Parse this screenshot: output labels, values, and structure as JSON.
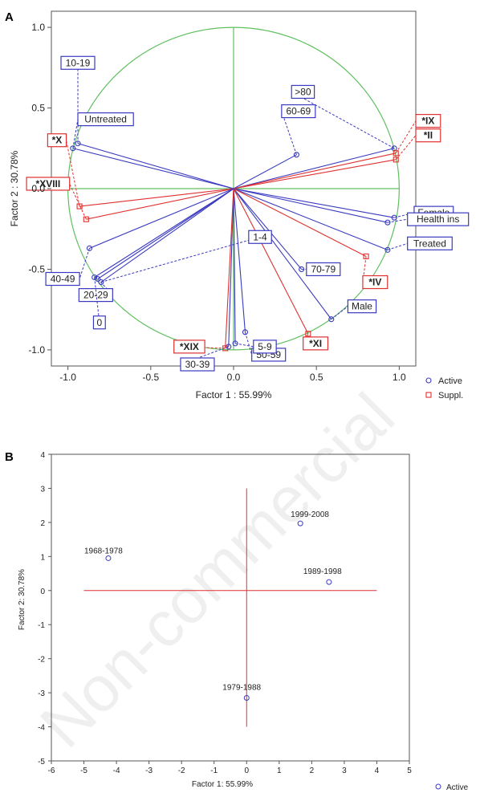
{
  "chart_data": [
    {
      "type": "scatter",
      "panel_label": "A",
      "xlabel": "Factor 1 : 55.99%",
      "ylabel": "Factor 2 : 30.78%",
      "xlim": [
        -1.1,
        1.1
      ],
      "ylim": [
        -1.1,
        1.1
      ],
      "xticks": [
        "-1.0",
        "-0.5",
        "0.0",
        "0.5",
        "1.0"
      ],
      "yticks": [
        "1.0",
        "0.5",
        "0.0",
        "-0.5",
        "-1.0"
      ],
      "unit_circle": true,
      "legend": [
        {
          "name": "Active",
          "marker": "circle",
          "color": "#3a3ac0"
        },
        {
          "name": "Suppl.",
          "marker": "square",
          "color": "#e03030"
        }
      ],
      "colors": {
        "active": "#3a3ac0",
        "suppl": "#e03030",
        "circle": "#60c060",
        "axes": "#60c060"
      },
      "points": [
        {
          "label": "10-19",
          "x": -0.94,
          "y": 0.28,
          "group": "active"
        },
        {
          "label": "Untreated",
          "x": -0.97,
          "y": 0.25,
          "group": "active"
        },
        {
          "label": "60-69",
          "x": 0.38,
          "y": 0.21,
          "group": "active"
        },
        {
          "label": ">80",
          "x": 0.97,
          "y": 0.25,
          "group": "active"
        },
        {
          "label": "*IX",
          "x": 0.98,
          "y": 0.22,
          "group": "suppl"
        },
        {
          "label": "*II",
          "x": 0.98,
          "y": 0.18,
          "group": "suppl"
        },
        {
          "label": "Female",
          "x": 0.97,
          "y": -0.18,
          "group": "active"
        },
        {
          "label": "Health ins",
          "x": 0.93,
          "y": -0.21,
          "group": "active"
        },
        {
          "label": "Treated",
          "x": 0.93,
          "y": -0.38,
          "group": "active"
        },
        {
          "label": "*IV",
          "x": 0.8,
          "y": -0.42,
          "group": "suppl"
        },
        {
          "label": "70-79",
          "x": 0.41,
          "y": -0.5,
          "group": "active"
        },
        {
          "label": "Male",
          "x": 0.59,
          "y": -0.81,
          "group": "active"
        },
        {
          "label": "*XI",
          "x": 0.45,
          "y": -0.9,
          "group": "suppl"
        },
        {
          "label": "50-59",
          "x": 0.07,
          "y": -0.89,
          "group": "active"
        },
        {
          "label": "5-9",
          "x": 0.01,
          "y": -0.96,
          "group": "active"
        },
        {
          "label": "30-39",
          "x": -0.03,
          "y": -0.98,
          "group": "active"
        },
        {
          "label": "*XIX",
          "x": -0.05,
          "y": -0.99,
          "group": "suppl"
        },
        {
          "label": "*X",
          "x": -0.93,
          "y": -0.11,
          "group": "suppl"
        },
        {
          "label": "*XVIII",
          "x": -0.89,
          "y": -0.19,
          "group": "suppl"
        },
        {
          "label": "40-49",
          "x": -0.87,
          "y": -0.37,
          "group": "active"
        },
        {
          "label": "20-29",
          "x": -0.82,
          "y": -0.56,
          "group": "active"
        },
        {
          "label": "1-4",
          "x": -0.8,
          "y": -0.58,
          "group": "active"
        },
        {
          "label": "0",
          "x": -0.84,
          "y": -0.55,
          "group": "active"
        }
      ]
    },
    {
      "type": "scatter",
      "panel_label": "B",
      "xlabel": "Factor 1: 55.99%",
      "ylabel": "Factor 2: 30.78%",
      "xlim": [
        -6,
        5
      ],
      "ylim": [
        -5,
        4
      ],
      "xticks": [
        "-6",
        "-5",
        "-4",
        "-3",
        "-2",
        "-1",
        "0",
        "1",
        "2",
        "3",
        "4",
        "5"
      ],
      "yticks": [
        "4",
        "3",
        "2",
        "1",
        "0",
        "-1",
        "-2",
        "-3",
        "-4",
        "-5"
      ],
      "legend": [
        {
          "name": "Active",
          "marker": "circle",
          "color": "#3a3ac0"
        }
      ],
      "colors": {
        "points": "#3a3ac0",
        "crosshair": "#e03030"
      },
      "crosshair": {
        "x_range": [
          -5,
          4
        ],
        "y_range": [
          -4,
          3
        ]
      },
      "points": [
        {
          "label": "1968-1978",
          "x": -4.25,
          "y": 0.95
        },
        {
          "label": "1999-2008",
          "x": 1.65,
          "y": 1.97
        },
        {
          "label": "1989-1998",
          "x": 2.53,
          "y": 0.25
        },
        {
          "label": "1979-1988",
          "x": 0.0,
          "y": -3.15
        }
      ]
    }
  ],
  "watermark": "Non-commercial"
}
